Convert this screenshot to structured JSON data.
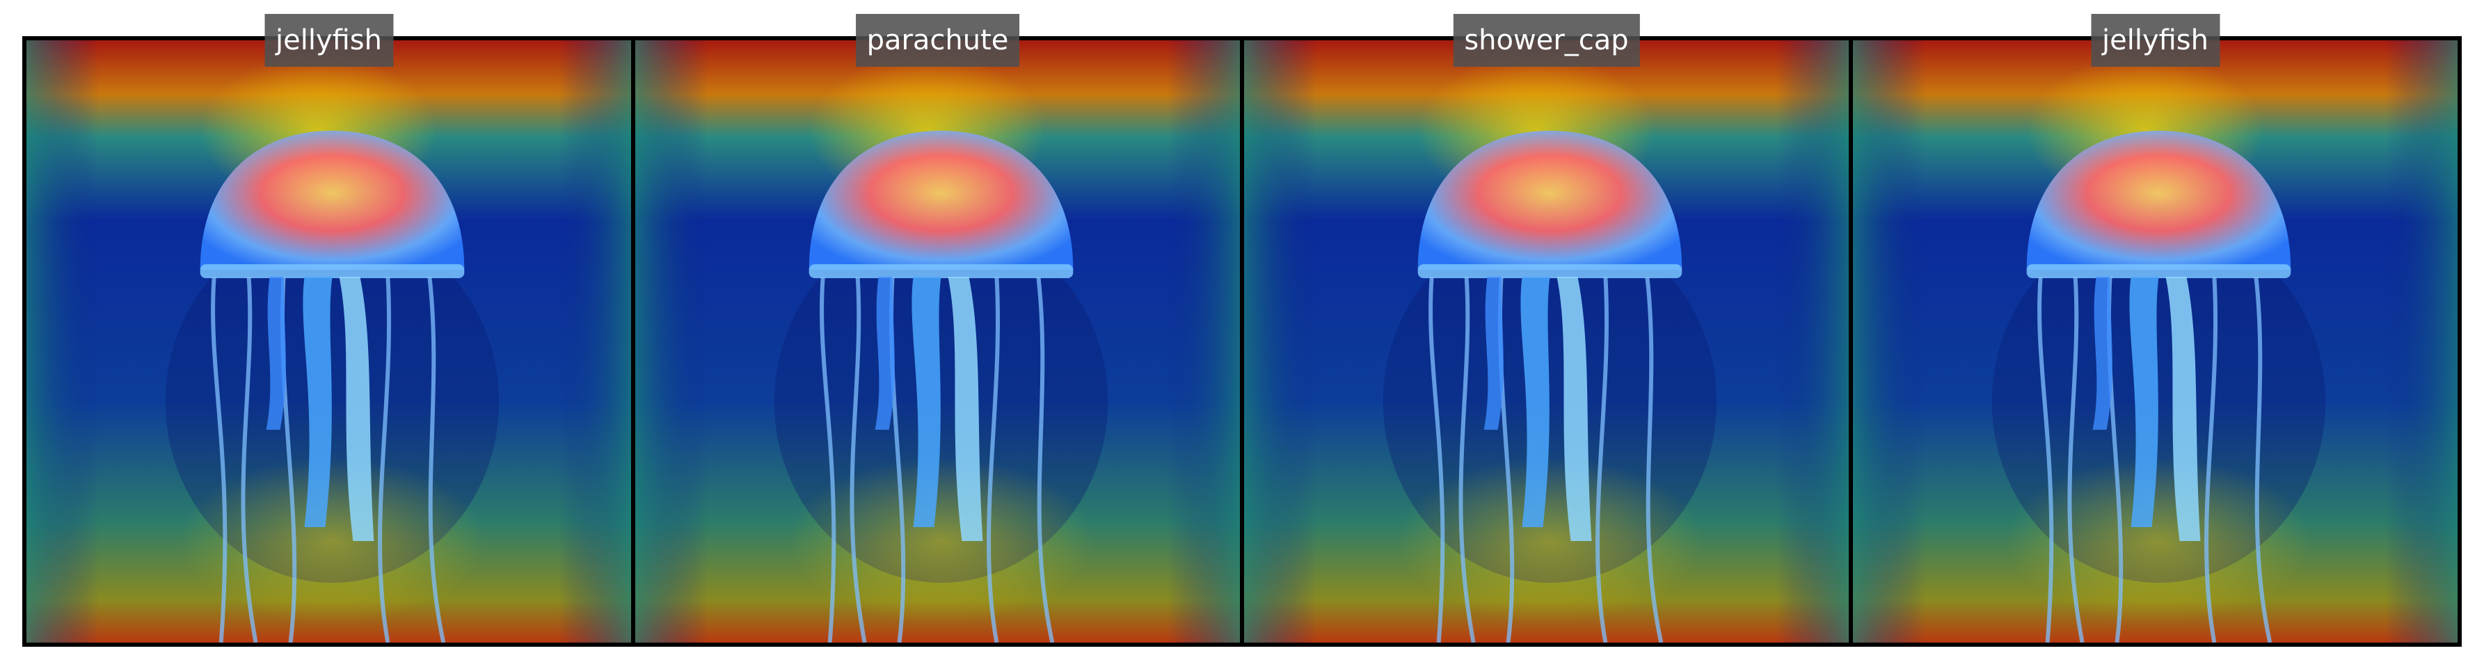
{
  "panels": [
    {
      "label": "jellyfish"
    },
    {
      "label": "parachute"
    },
    {
      "label": "shower_cap"
    },
    {
      "label": "jellyfish"
    }
  ]
}
